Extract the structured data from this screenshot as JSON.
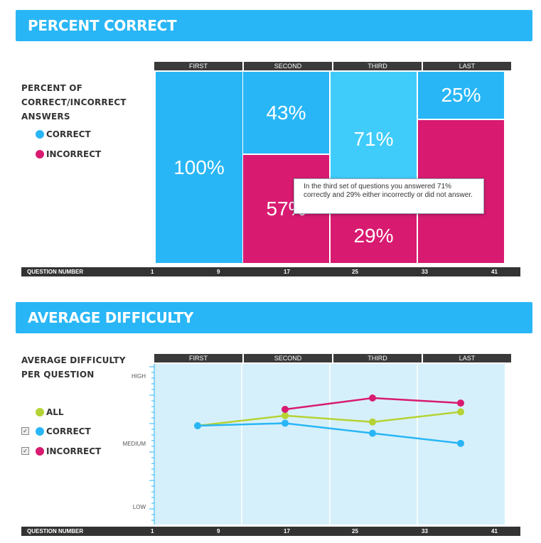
{
  "section1": {
    "title": "PERCENT CORRECT",
    "side_title_lines": [
      "PERCENT OF",
      "CORRECT/INCORRECT",
      "ANSWERS"
    ],
    "legend": [
      {
        "label": "CORRECT",
        "color": "#29b6f6"
      },
      {
        "label": "INCORRECT",
        "color": "#d81b71"
      }
    ],
    "tooltip": "In the third set of questions you answered 71% correctly and 29% either incorrectly or did not answer."
  },
  "section2": {
    "title": "AVERAGE DIFFICULTY",
    "side_title_lines": [
      "AVERAGE DIFFICULTY",
      "PER QUESTION"
    ],
    "legend": [
      {
        "label": "ALL",
        "color": "#b5d334",
        "checkbox": false
      },
      {
        "label": "CORRECT",
        "color": "#29b6f6",
        "checkbox": true
      },
      {
        "label": "INCORRECT",
        "color": "#d81b71",
        "checkbox": true
      }
    ],
    "checkbox_mark": "✓"
  },
  "question_bar": {
    "label": "QUESTION NUMBER",
    "ticks": [
      "1",
      "9",
      "17",
      "25",
      "33",
      "41"
    ]
  },
  "chart_data": [
    {
      "type": "bar",
      "stacked": true,
      "categories": [
        "FIRST",
        "SECOND",
        "THIRD",
        "LAST"
      ],
      "series": [
        {
          "name": "CORRECT",
          "values": [
            100,
            43,
            71,
            25
          ],
          "color": "#29b6f6"
        },
        {
          "name": "INCORRECT",
          "values": [
            0,
            57,
            29,
            75
          ],
          "color": "#d81b71"
        }
      ],
      "value_labels": [
        [
          "100%",
          "",
          "",
          ""
        ],
        [
          "43%",
          "57%",
          "",
          ""
        ],
        [
          "71%",
          "29%",
          "",
          ""
        ],
        [
          "25%",
          "",
          "",
          ""
        ]
      ],
      "xlabel": "QUESTION NUMBER",
      "ylim": [
        0,
        100
      ]
    },
    {
      "type": "line",
      "categories": [
        "FIRST",
        "SECOND",
        "THIRD",
        "LAST"
      ],
      "yticks": [
        "HIGH",
        "MEDIUM",
        "LOW"
      ],
      "ylim": [
        0,
        1
      ],
      "series": [
        {
          "name": "ALL",
          "color": "#b5d334",
          "points": [
            [
              0,
              0.44
            ],
            [
              1,
              0.52
            ],
            [
              2,
              0.47
            ],
            [
              3,
              0.55
            ]
          ]
        },
        {
          "name": "CORRECT",
          "color": "#29b6f6",
          "points": [
            [
              0,
              0.44
            ],
            [
              1,
              0.46
            ],
            [
              2,
              0.38
            ],
            [
              3,
              0.3
            ]
          ]
        },
        {
          "name": "INCORRECT",
          "color": "#d81b71",
          "points": [
            [
              1,
              0.57
            ],
            [
              2,
              0.66
            ],
            [
              3,
              0.62
            ]
          ]
        }
      ],
      "xlabel": "QUESTION NUMBER"
    }
  ]
}
